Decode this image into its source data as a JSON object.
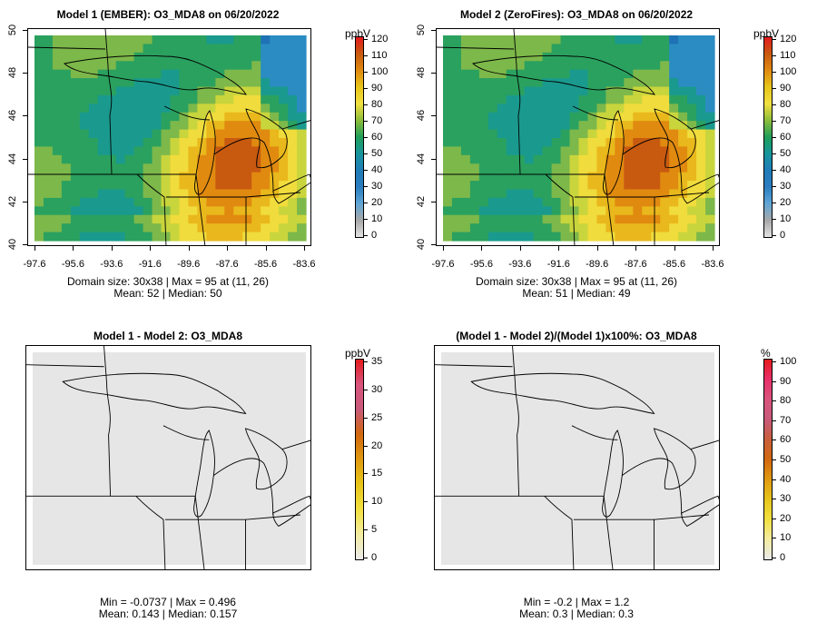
{
  "panels": [
    {
      "title": "Model 1 (EMBER): O3_MDA8 on 06/20/2022",
      "kind": "field",
      "stats_line1": "Domain size: 30x38 | Max = 95 at (11, 26)",
      "stats_line2": "Mean: 52 |  Median: 50",
      "show_axes": true
    },
    {
      "title": "Model 2 (ZeroFires): O3_MDA8 on 06/20/2022",
      "kind": "field",
      "stats_line1": "Domain size: 30x38 | Max = 95 at (11, 26)",
      "stats_line2": "Mean: 51 |  Median: 49",
      "show_axes": true
    },
    {
      "title": "Model 1 - Model 2: O3_MDA8",
      "kind": "diff",
      "stats_line1": "Min = -0.0737 | Max = 0.496",
      "stats_line2": "Mean: 0.143 |  Median: 0.157",
      "show_axes": false
    },
    {
      "title": "(Model 1 - Model 2)/(Model 1)x100%: O3_MDA8",
      "kind": "diff",
      "stats_line1": "Min = -0.2 | Max = 1.2",
      "stats_line2": "Mean: 0.3 |  Median: 0.3",
      "show_axes": false
    }
  ],
  "axes": {
    "lat_ticks": [
      "40",
      "42",
      "44",
      "46",
      "48",
      "50"
    ],
    "lon_ticks": [
      "-97.6",
      "-95.6",
      "-93.6",
      "-91.6",
      "-89.6",
      "-87.6",
      "-85.6",
      "-83.6"
    ]
  },
  "colorbars": [
    {
      "unit": "ppbV",
      "labels": [
        "120",
        "110",
        "100",
        "90",
        "80",
        "70",
        "60",
        "50",
        "40",
        "30",
        "20",
        "10",
        "0"
      ],
      "colors": [
        "#e3e3e3",
        "#a8a8a8",
        "#5fa6d6",
        "#2a7dbf",
        "#1f7cb8",
        "#18959c",
        "#1f9e5a",
        "#8bbd3a",
        "#f2e040",
        "#e7c51a",
        "#e08a10",
        "#c85a10",
        "#e41a1c"
      ]
    },
    {
      "unit": "ppbV",
      "labels": [
        "120",
        "110",
        "100",
        "90",
        "80",
        "70",
        "60",
        "50",
        "40",
        "30",
        "20",
        "10",
        "0"
      ],
      "colors": [
        "#e3e3e3",
        "#a8a8a8",
        "#5fa6d6",
        "#2a7dbf",
        "#1f7cb8",
        "#18959c",
        "#1f9e5a",
        "#8bbd3a",
        "#f2e040",
        "#e7c51a",
        "#e08a10",
        "#c85a10",
        "#e41a1c"
      ]
    },
    {
      "unit": "ppbV",
      "labels": [
        "35",
        "30",
        "25",
        "20",
        "15",
        "10",
        "5",
        "0"
      ],
      "colors": [
        "#eaeaea",
        "#f3eca0",
        "#f2e040",
        "#e7c51a",
        "#e09a10",
        "#d2680f",
        "#c85a7a",
        "#d8547e",
        "#e41a1c"
      ]
    },
    {
      "unit": "%",
      "labels": [
        "100",
        "90",
        "80",
        "70",
        "60",
        "50",
        "40",
        "30",
        "20",
        "10",
        "0"
      ],
      "colors": [
        "#eaeaea",
        "#f3eca0",
        "#f2e040",
        "#e7c51a",
        "#e09a10",
        "#d2680f",
        "#c8603a",
        "#c85a7a",
        "#d8547e",
        "#e8306a",
        "#e41a1c"
      ]
    }
  ]
}
